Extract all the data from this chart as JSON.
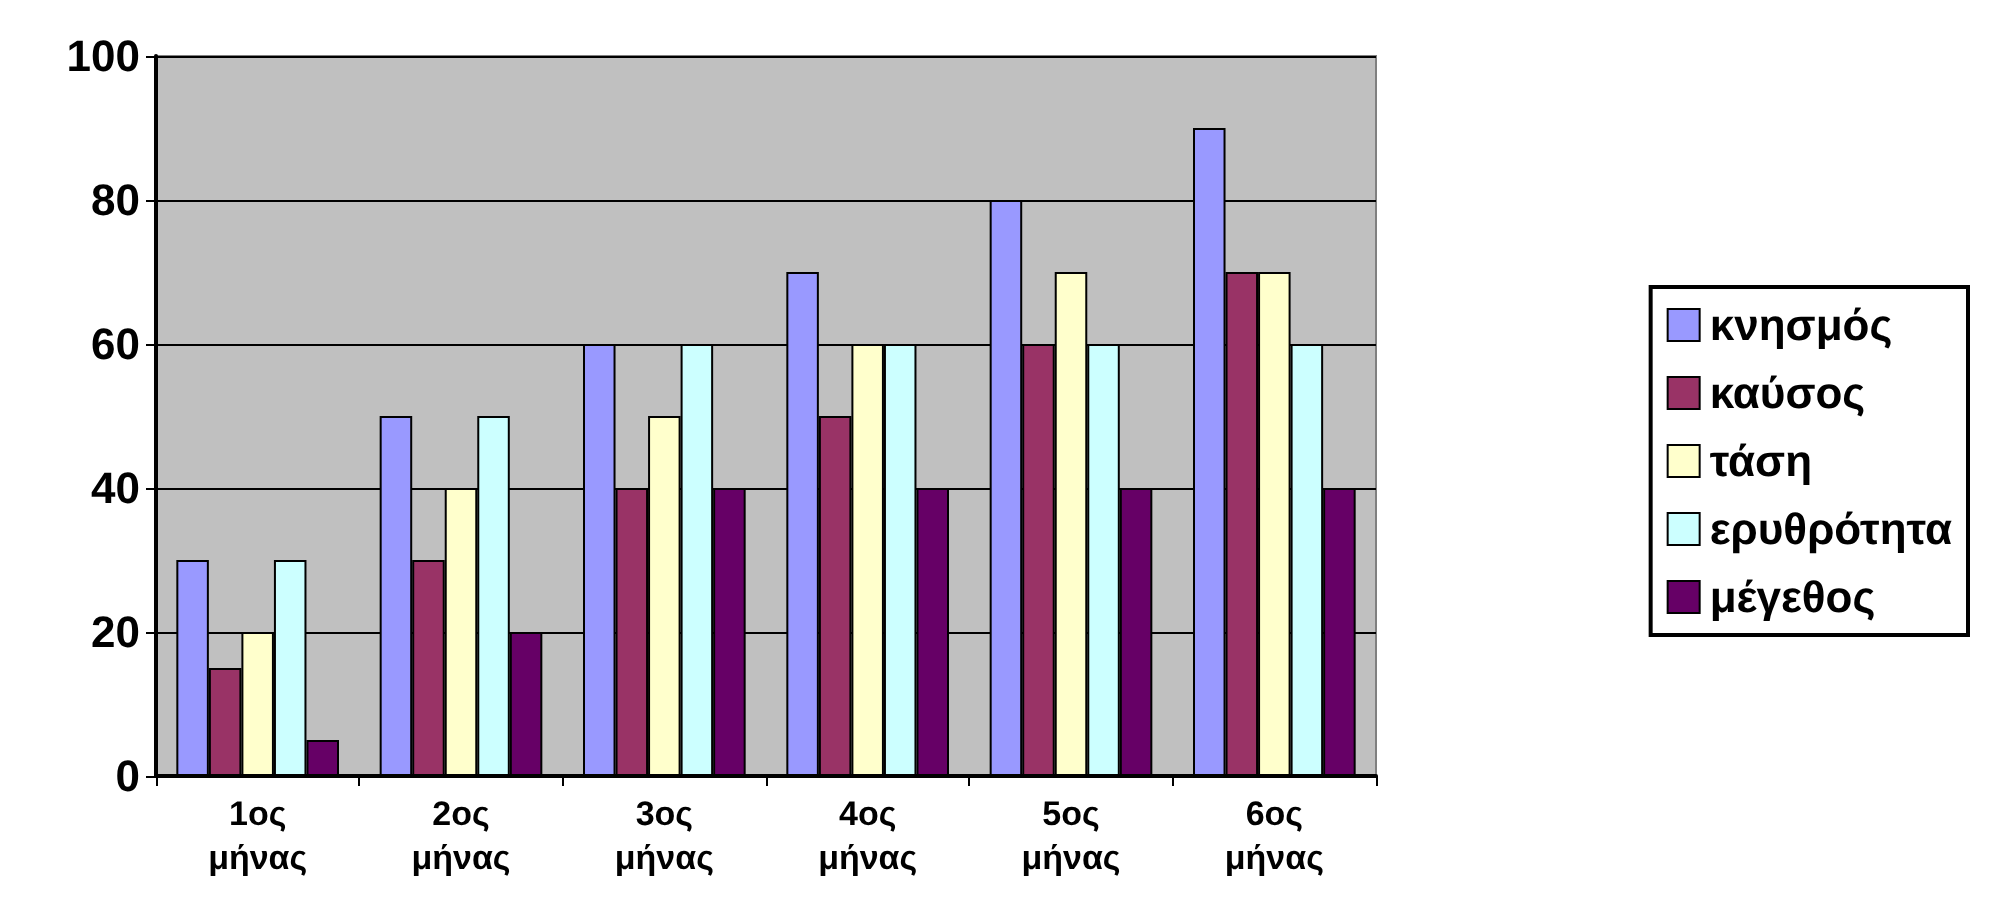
{
  "chart_data": {
    "type": "bar",
    "categories": [
      "1ος\nμήνας",
      "2ος\nμήνας",
      "3ος\nμήνας",
      "4ος\nμήνας",
      "5ος\nμήνας",
      "6ος\nμήνας"
    ],
    "series": [
      {
        "name": "κνησμός",
        "color": "#9999ff",
        "values": [
          30,
          50,
          60,
          70,
          80,
          90
        ]
      },
      {
        "name": "καύσος",
        "color": "#993366",
        "values": [
          15,
          30,
          40,
          50,
          60,
          70
        ]
      },
      {
        "name": "τάση",
        "color": "#ffffcc",
        "values": [
          20,
          40,
          50,
          60,
          70,
          70
        ]
      },
      {
        "name": "ερυθρότητα",
        "color": "#ccffff",
        "values": [
          30,
          50,
          60,
          60,
          60,
          60
        ]
      },
      {
        "name": "μέγεθος",
        "color": "#660066",
        "values": [
          5,
          20,
          40,
          40,
          40,
          40
        ]
      }
    ],
    "ylim": [
      0,
      100
    ],
    "yticks": [
      0,
      20,
      40,
      60,
      80,
      100
    ],
    "grid": "y",
    "legend": "right"
  }
}
